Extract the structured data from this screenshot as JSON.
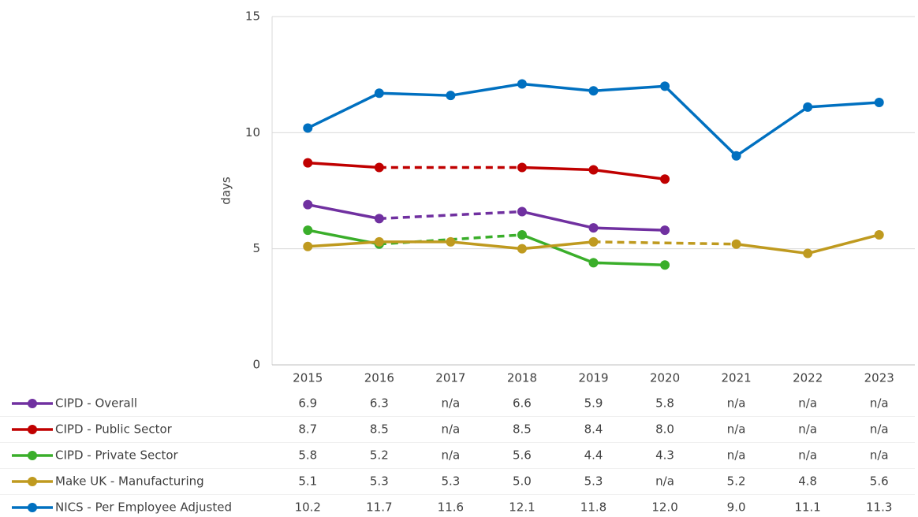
{
  "chart_data": {
    "type": "line",
    "y_label": "days",
    "categories": [
      "2015",
      "2016",
      "2017",
      "2018",
      "2019",
      "2020",
      "2021",
      "2022",
      "2023"
    ],
    "ylim": [
      0,
      15
    ],
    "yticks": [
      0,
      5,
      10,
      15
    ],
    "grid": true,
    "series": [
      {
        "name": "CIPD - Overall",
        "color": "#7030a0",
        "values": [
          6.9,
          6.3,
          null,
          6.6,
          5.9,
          5.8,
          null,
          null,
          null
        ],
        "value_labels": [
          "6.9",
          "6.3",
          "n/a",
          "6.6",
          "5.9",
          "5.8",
          "n/a",
          "n/a",
          "n/a"
        ]
      },
      {
        "name": "CIPD - Public Sector",
        "color": "#c00000",
        "values": [
          8.7,
          8.5,
          null,
          8.5,
          8.4,
          8.0,
          null,
          null,
          null
        ],
        "value_labels": [
          "8.7",
          "8.5",
          "n/a",
          "8.5",
          "8.4",
          "8.0",
          "n/a",
          "n/a",
          "n/a"
        ]
      },
      {
        "name": "CIPD - Private Sector",
        "color": "#3aae2a",
        "values": [
          5.8,
          5.2,
          null,
          5.6,
          4.4,
          4.3,
          null,
          null,
          null
        ],
        "value_labels": [
          "5.8",
          "5.2",
          "n/a",
          "5.6",
          "4.4",
          "4.3",
          "n/a",
          "n/a",
          "n/a"
        ]
      },
      {
        "name": "Make UK - Manufacturing",
        "color": "#bf9a1f",
        "values": [
          5.1,
          5.3,
          5.3,
          5.0,
          5.3,
          null,
          5.2,
          4.8,
          5.6
        ],
        "value_labels": [
          "5.1",
          "5.3",
          "5.3",
          "5.0",
          "5.3",
          "n/a",
          "5.2",
          "4.8",
          "5.6"
        ]
      },
      {
        "name": "NICS - Per Employee Adjusted",
        "color": "#0070c0",
        "values": [
          10.2,
          11.7,
          11.6,
          12.1,
          11.8,
          12.0,
          9.0,
          11.1,
          11.3
        ],
        "value_labels": [
          "10.2",
          "11.7",
          "11.6",
          "12.1",
          "11.8",
          "12.0",
          "9.0",
          "11.1",
          "11.3"
        ]
      }
    ]
  }
}
